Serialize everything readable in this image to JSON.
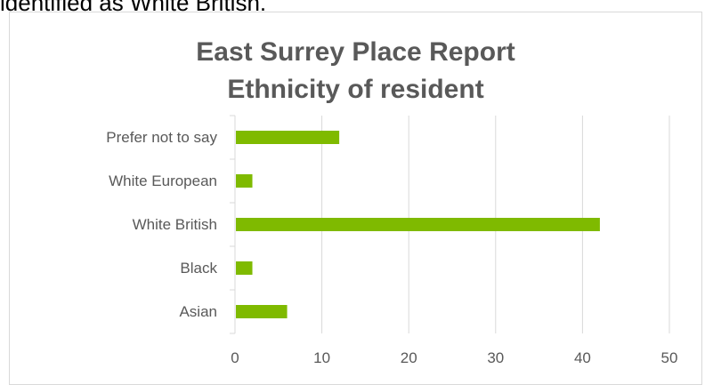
{
  "page_text": {
    "top_caption": "identified as White British."
  },
  "chart_data": {
    "type": "bar",
    "orientation": "horizontal",
    "title": "East Surrey Place Report",
    "subtitle": "Ethnicity of resident",
    "categories": [
      "Prefer not to say",
      "White European",
      "White British",
      "Black",
      "Asian"
    ],
    "values": [
      12,
      2,
      42,
      2,
      6
    ],
    "xlim": [
      0,
      50
    ],
    "xticks": [
      0,
      10,
      20,
      30,
      40,
      50
    ],
    "grid": true,
    "legend": "none",
    "bar_color": "#7fba00",
    "grid_color": "#d9d9d9",
    "text_color": "#595959"
  }
}
